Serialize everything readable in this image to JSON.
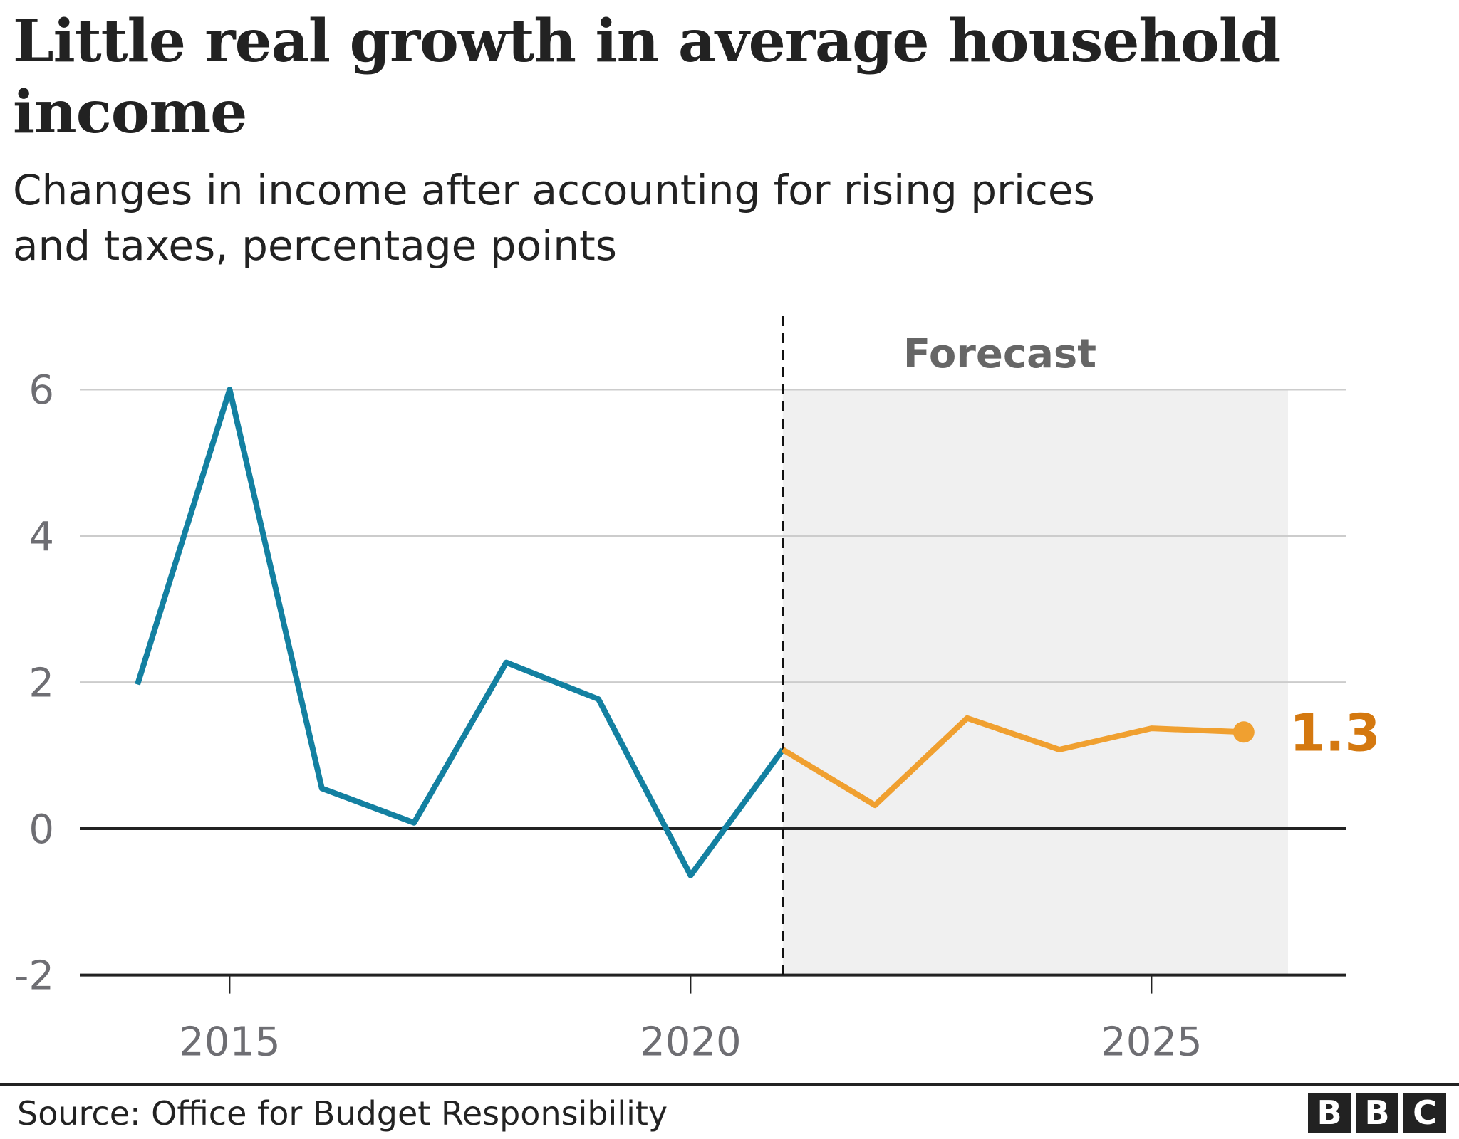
{
  "header": {
    "title": "Little real growth in average household income",
    "subtitle": "Changes in income after accounting for rising prices and taxes, percentage points"
  },
  "footer": {
    "source": "Source: Office for Budget Responsibility",
    "logo_letters": [
      "B",
      "B",
      "C"
    ]
  },
  "colors": {
    "actual": "#1380a1",
    "forecast": "#f0a030",
    "forecast_label": "#d4780f",
    "forecast_shade": "#f0f0f0",
    "grid": "#cccccc",
    "axis": "#222222",
    "tick_text": "#6e6e73"
  },
  "chart_data": {
    "type": "line",
    "title": "Little real growth in average household income",
    "subtitle": "Changes in income after accounting for rising prices and taxes, percentage points",
    "xlabel": "",
    "ylabel": "",
    "xlim": [
      2013.0,
      2027.2
    ],
    "ylim": [
      -2,
      6
    ],
    "yticks": [
      -2,
      0,
      2,
      4,
      6
    ],
    "xticks": [
      2015,
      2020,
      2025
    ],
    "grid": true,
    "series": [
      {
        "name": "Actual",
        "x": [
          2014,
          2015,
          2016,
          2017,
          2018,
          2019,
          2020,
          2021
        ],
        "values": [
          1.97,
          6.0,
          0.55,
          0.08,
          2.27,
          1.77,
          -0.64,
          1.08
        ]
      },
      {
        "name": "Forecast",
        "x": [
          2021,
          2022,
          2023,
          2024,
          2025,
          2026
        ],
        "values": [
          1.08,
          0.32,
          1.51,
          1.08,
          1.37,
          1.32
        ]
      }
    ],
    "forecast_region": {
      "start": 2021,
      "end": 2026.5,
      "label": "Forecast"
    },
    "annotations": [
      {
        "x": 2026,
        "y": 1.3,
        "text": "1.3"
      }
    ]
  }
}
